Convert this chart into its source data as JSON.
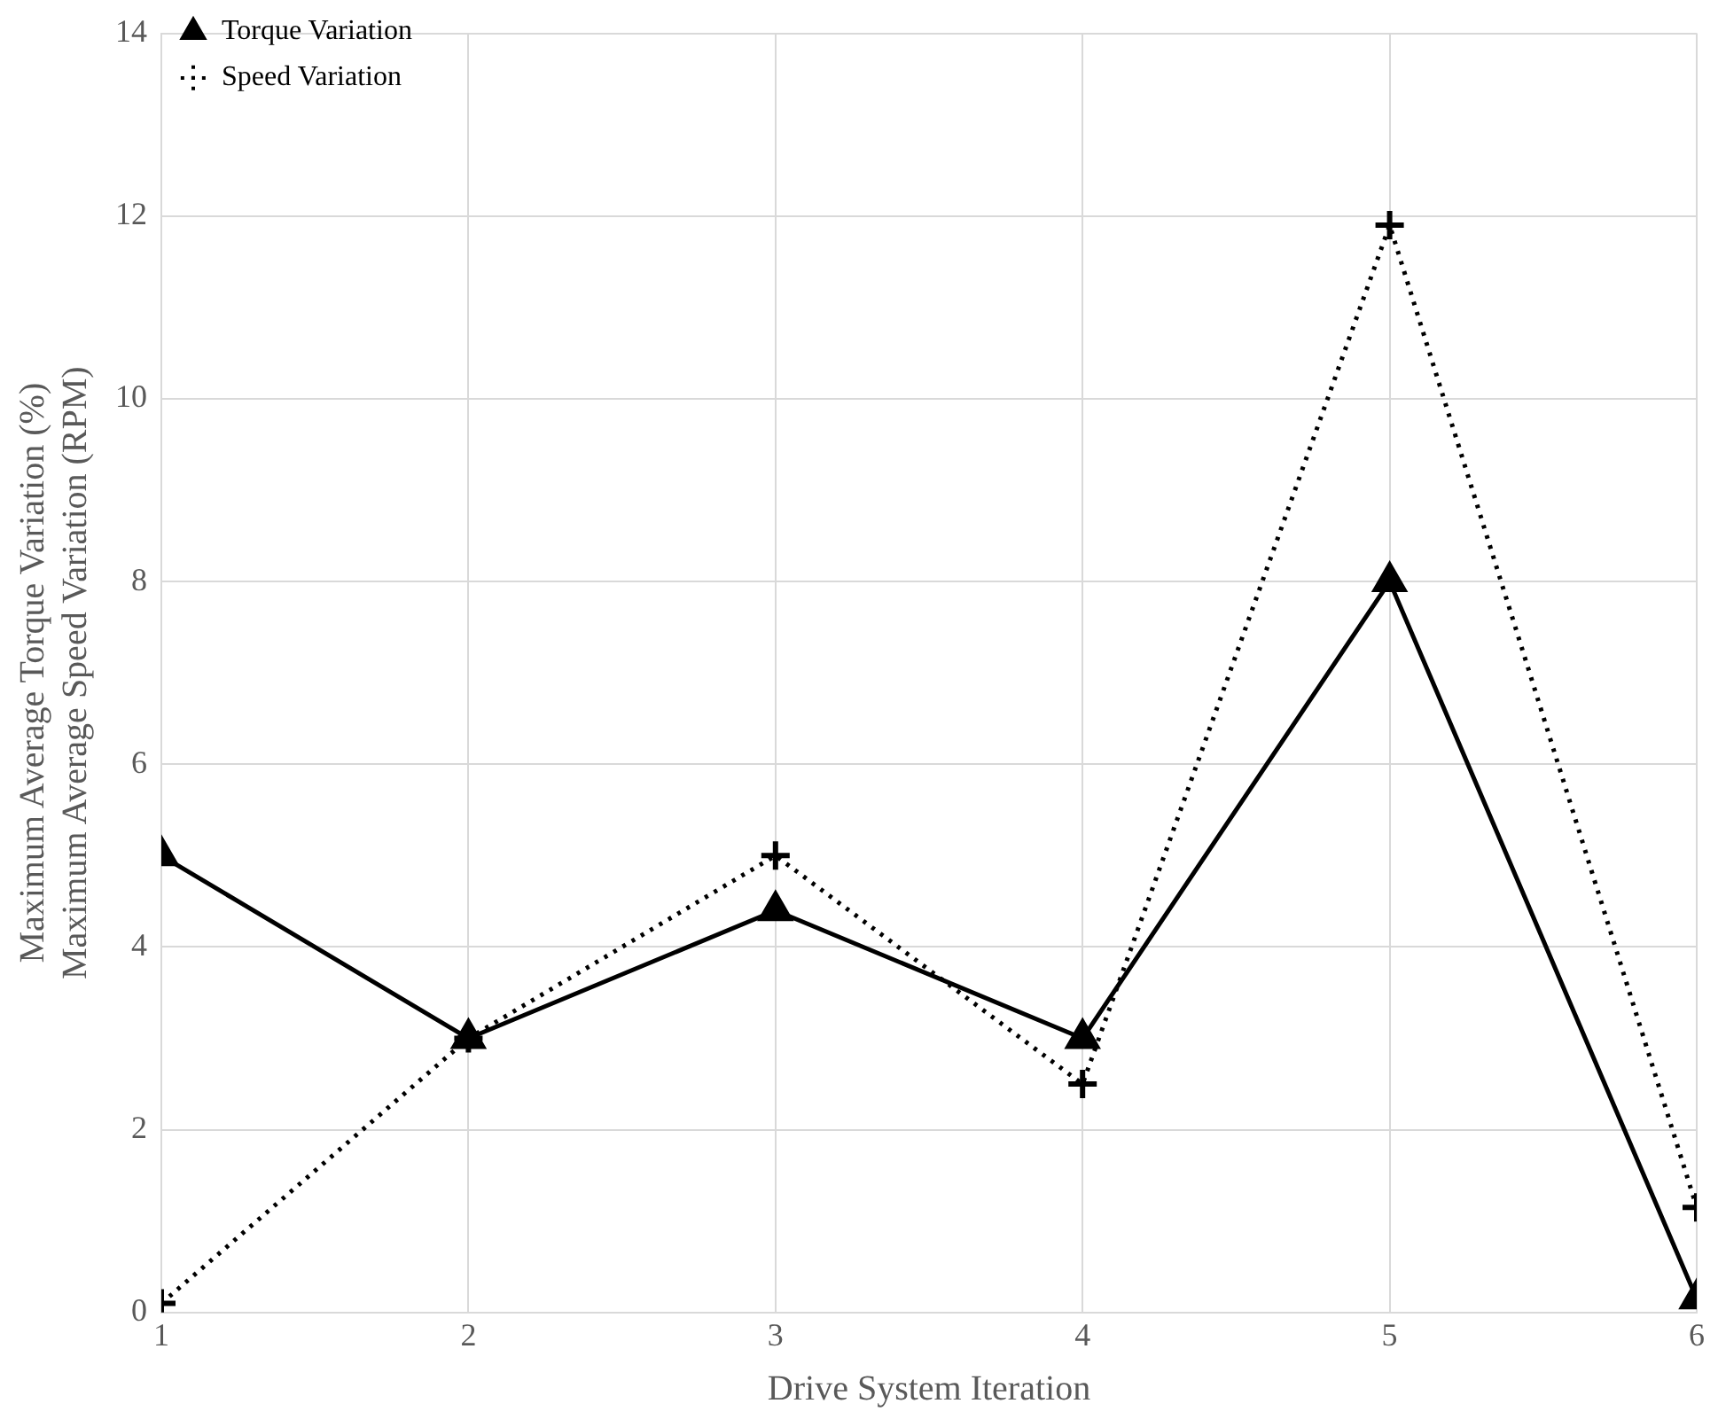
{
  "chart_data": {
    "type": "line",
    "xlabel": "Drive System Iteration",
    "ylabel": "Maximum Average Torque Variation (%)\nMaximum Average Speed Variation (RPM)",
    "x": [
      1,
      2,
      3,
      4,
      5,
      6
    ],
    "xlim": [
      1,
      6
    ],
    "xticks": [
      1,
      2,
      3,
      4,
      5,
      6
    ],
    "ylim": [
      0,
      14
    ],
    "yticks": [
      0,
      2,
      4,
      6,
      8,
      10,
      12,
      14
    ],
    "grid": true,
    "legend": "top left",
    "series": [
      {
        "name": "Torque Variation",
        "color": "#000000",
        "values": [
          5.0,
          3.0,
          4.4,
          3.0,
          8.0,
          0.15
        ],
        "marker": "triangle",
        "line_style": "solid"
      },
      {
        "name": "Speed Variation",
        "color": "#000000",
        "values": [
          0.1,
          3.0,
          5.0,
          2.5,
          11.9,
          1.15
        ],
        "marker": "cross",
        "line_style": "dotted"
      }
    ]
  }
}
